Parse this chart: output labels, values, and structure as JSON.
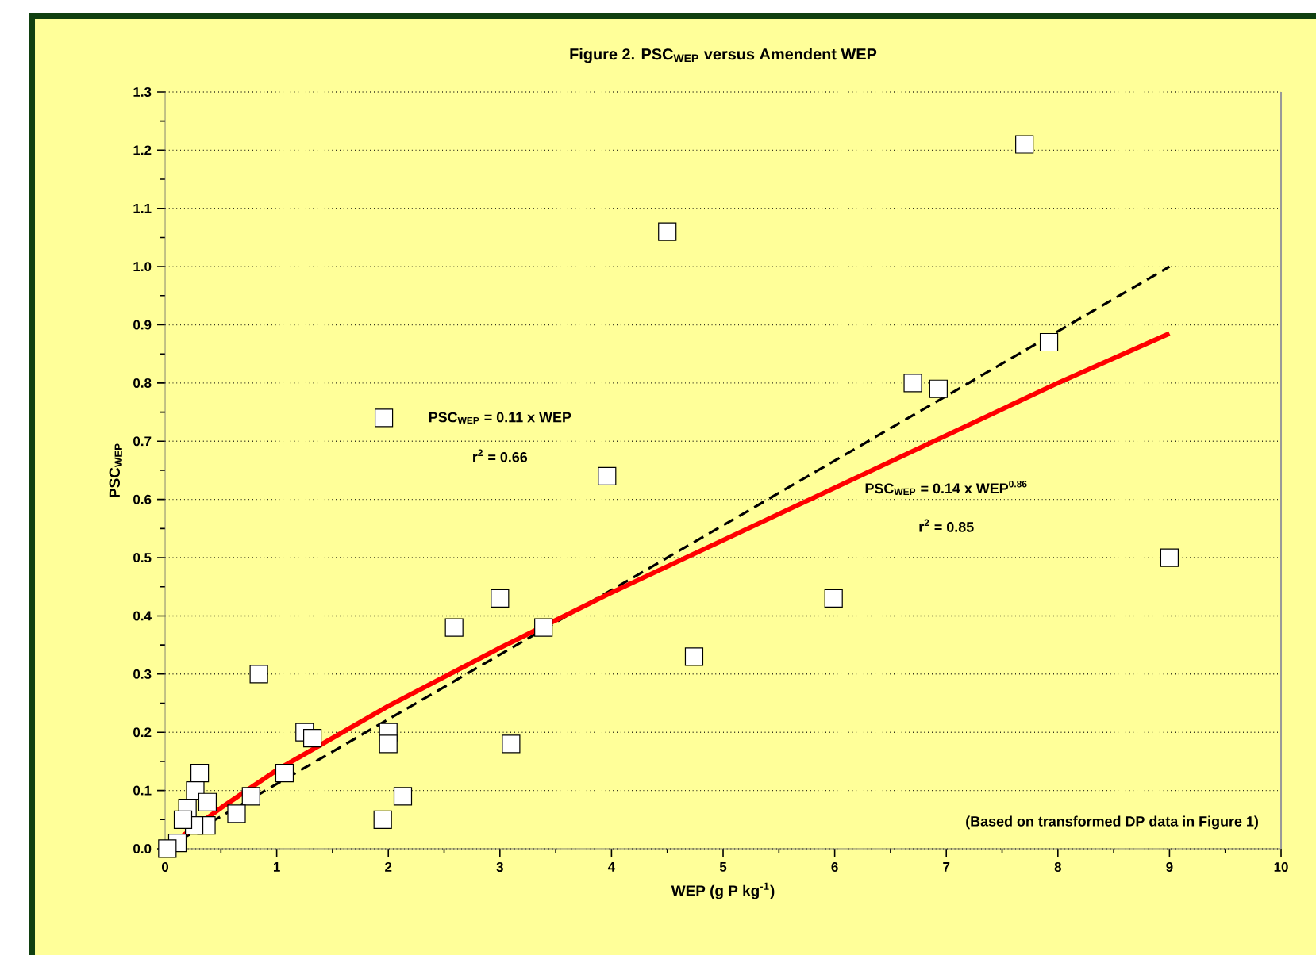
{
  "chart_data": {
    "type": "scatter",
    "title": "Figure 2.  PSC$_{WEP}$ versus Amendent WEP",
    "xlabel": "WEP (g P kg$^{-1}$)",
    "ylabel": "PSC$_{WEP}$",
    "xlim": [
      0,
      10
    ],
    "xticks": [
      0,
      1,
      2,
      3,
      4,
      5,
      6,
      7,
      8,
      9,
      10
    ],
    "ylim": [
      0,
      1.3
    ],
    "yticks": [
      {
        "value": 0,
        "label": "0.0"
      },
      0.1,
      0.2,
      0.3,
      0.4,
      0.5,
      0.6,
      0.7,
      0.8,
      0.9,
      {
        "value": 1.0,
        "label": "1.0"
      },
      1.1,
      1.2,
      1.3
    ],
    "grid": "y",
    "annotations": [
      "PSC$_{WEP}$ = 0.11 x WEP",
      "r$^{2}$ = 0.66",
      "PSC$_{WEP}$ = 0.14 x WEP$^{0.86}$",
      "r$^{2}$ = 0.85",
      "(Based on transformed DP data in Figure 1)"
    ],
    "series": [
      {
        "marker": "square",
        "color": "#ffffff",
        "x": [
          7.7,
          4.5,
          1.96,
          3.96,
          6.7,
          6.93,
          7.92,
          9.0,
          4.74,
          5.99,
          3.0,
          2.59,
          3.39,
          0.84,
          1.25,
          1.32,
          2.0,
          2.0,
          3.1,
          2.13,
          1.95,
          1.07,
          0.77,
          0.64,
          0.31,
          0.27,
          0.2,
          0.38,
          0.37,
          0.26,
          0.16,
          0.11,
          0.02
        ],
        "values": [
          1.21,
          1.06,
          0.74,
          0.64,
          0.8,
          0.79,
          0.87,
          0.5,
          0.33,
          0.43,
          0.43,
          0.38,
          0.38,
          0.3,
          0.2,
          0.19,
          0.2,
          0.18,
          0.18,
          0.09,
          0.05,
          0.13,
          0.09,
          0.06,
          0.13,
          0.1,
          0.07,
          0.08,
          0.04,
          0.04,
          0.05,
          0.01,
          0.0
        ]
      },
      {
        "type": "line",
        "marker": "none",
        "line_style": "dashed",
        "color": "#000000",
        "x": [
          0,
          9
        ],
        "values": [
          0,
          1.0
        ]
      },
      {
        "type": "line",
        "marker": "none",
        "line_style": "solid",
        "color": "#ff0000",
        "x": [
          0,
          0.5,
          1,
          2,
          3,
          4,
          5,
          6,
          7,
          8,
          9
        ],
        "values": [
          0,
          0.07,
          0.135,
          0.245,
          0.345,
          0.44,
          0.53,
          0.62,
          0.71,
          0.8,
          0.885
        ]
      }
    ]
  }
}
